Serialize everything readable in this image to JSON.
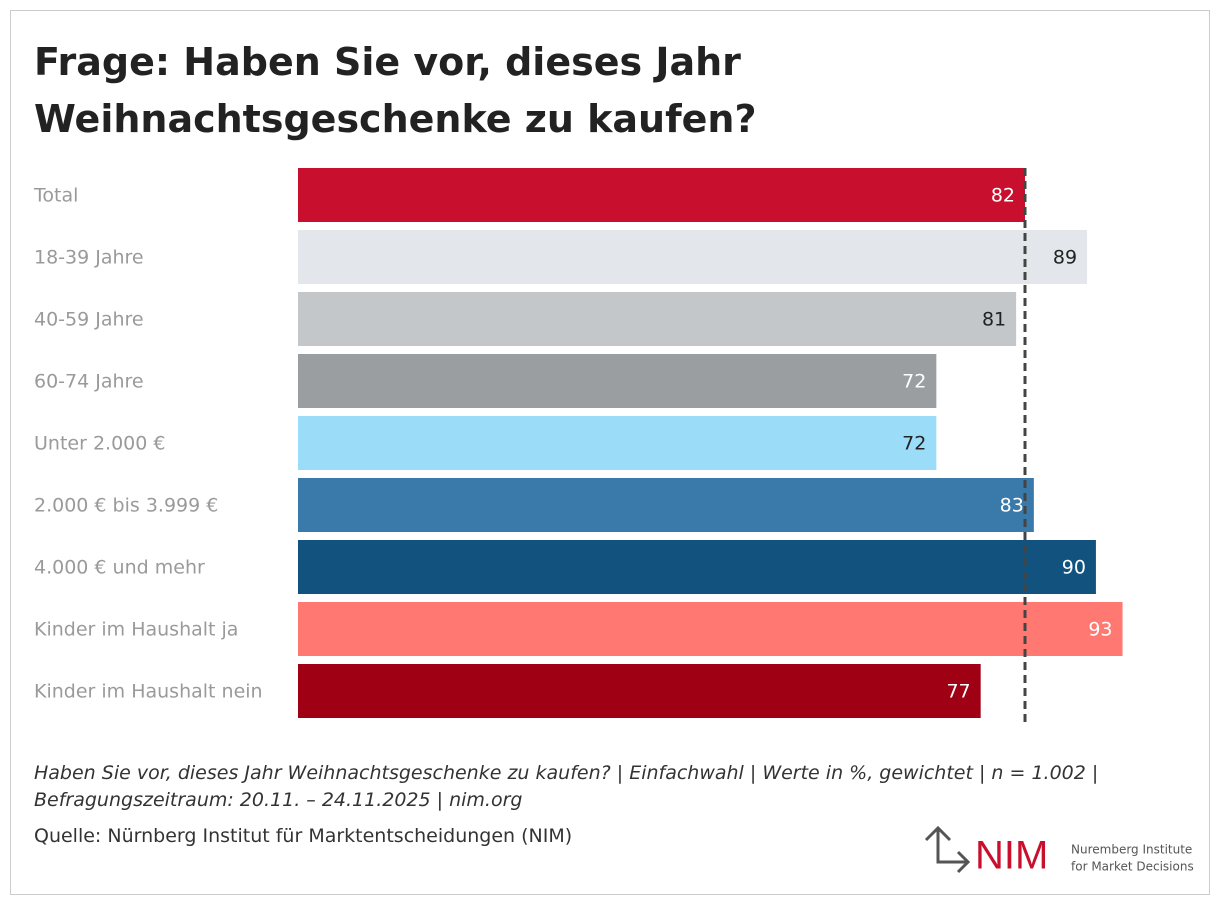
{
  "chart_data": {
    "type": "bar",
    "orientation": "horizontal",
    "title": "Frage: Haben Sie vor, dieses Jahr Weihnachtsgeschenke zu kaufen?",
    "categories": [
      "Total",
      "18-39 Jahre",
      "40-59 Jahre",
      "60-74 Jahre",
      "Unter 2.000 €",
      "2.000 € bis 3.999 €",
      "4.000 € und mehr",
      "Kinder im Haushalt ja",
      "Kinder im Haushalt nein"
    ],
    "values": [
      82,
      89,
      81,
      72,
      72,
      83,
      90,
      93,
      77
    ],
    "colors": [
      "#c8102e",
      "#e3e6ea",
      "#c4c7ca",
      "#9a9ea1",
      "#9bdcf9",
      "#3a7aab",
      "#11537e",
      "#ff7871",
      "#a00014"
    ],
    "xlim": [
      0,
      100
    ],
    "reference_line": "Total"
  },
  "note": "Haben Sie vor, dieses Jahr Weihnachtsgeschenke zu kaufen? | Einfachwahl | Werte in %, gewichtet | n = 1.002 | Befragungszeitraum: 20.11. – 24.11.2025 | nim.org",
  "source": "Quelle: Nürnberg Institut für Marktentscheidungen (NIM)",
  "logo": {
    "name": "NIM",
    "line1": "Nuremberg Institute",
    "line2": "for Market Decisions"
  }
}
